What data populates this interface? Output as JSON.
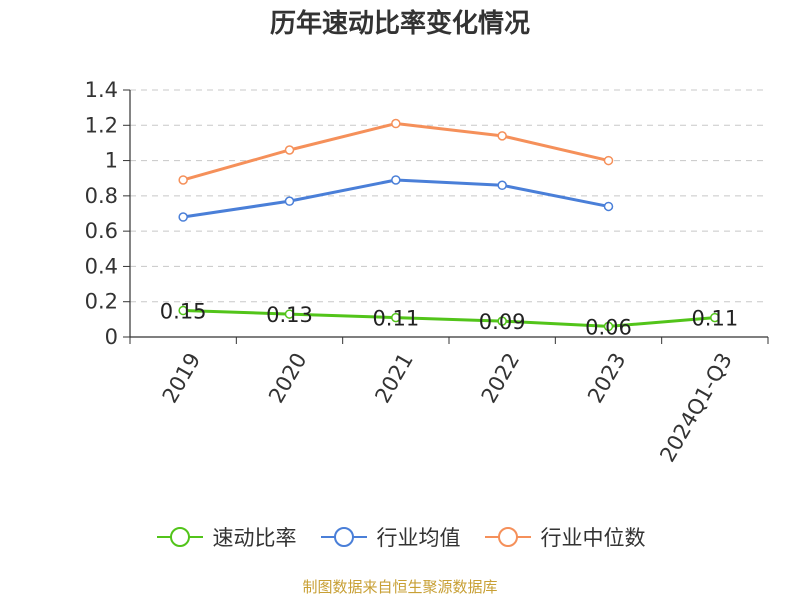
{
  "chart_data": {
    "type": "line",
    "title": "历年速动比率变化情况",
    "categories": [
      "2019",
      "2020",
      "2021",
      "2022",
      "2023",
      "2024Q1-Q3"
    ],
    "series": [
      {
        "name": "速动比率",
        "color": "#52c41a",
        "values": [
          0.15,
          0.13,
          0.11,
          0.09,
          0.06,
          0.11
        ],
        "data_labels": [
          "0.15",
          "0.13",
          "0.11",
          "0.09",
          "0.06",
          "0.11"
        ]
      },
      {
        "name": "行业均值",
        "color": "#4a7fd8",
        "values": [
          0.68,
          0.77,
          0.89,
          0.86,
          0.74,
          null
        ]
      },
      {
        "name": "行业中位数",
        "color": "#f5905a",
        "values": [
          0.89,
          1.06,
          1.21,
          1.14,
          1.0,
          null
        ]
      }
    ],
    "y_ticks": [
      "0",
      "0.2",
      "0.4",
      "0.6",
      "0.8",
      "1",
      "1.2",
      "1.4"
    ],
    "ylim": [
      0,
      1.4
    ],
    "grid": true,
    "legend_position": "bottom"
  },
  "source": "制图数据来自恒生聚源数据库"
}
